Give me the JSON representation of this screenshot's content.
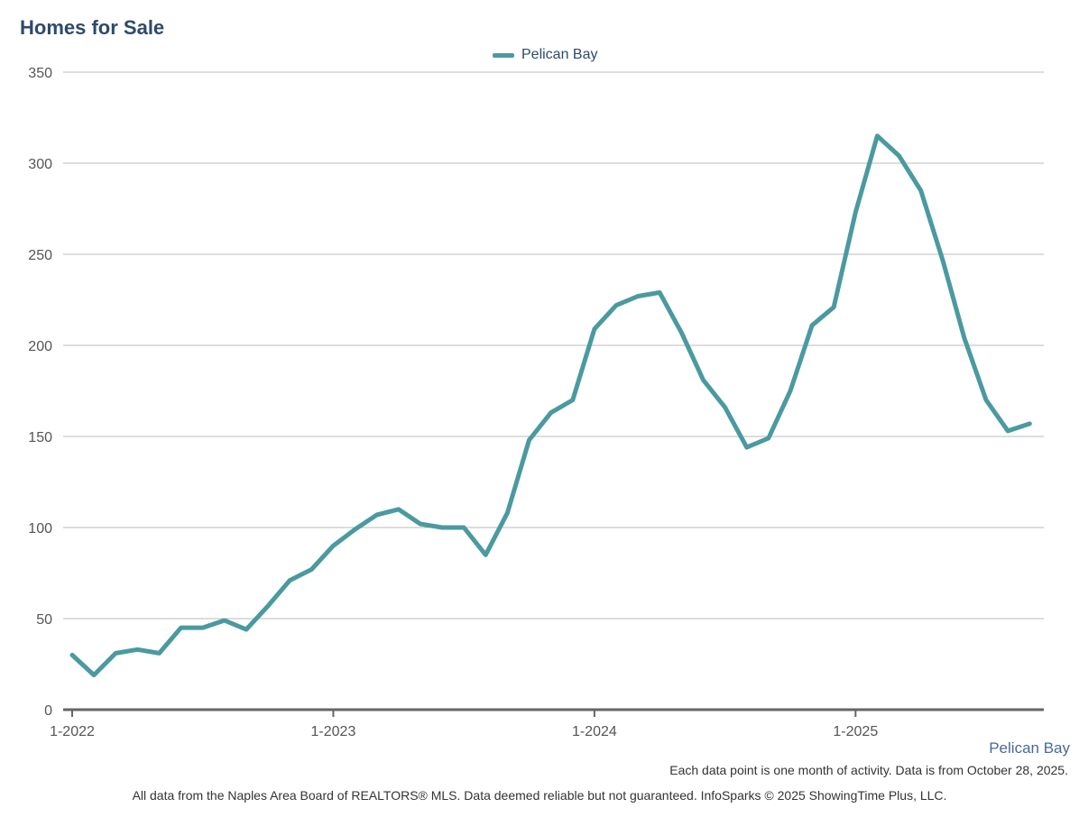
{
  "chart_data": {
    "type": "line",
    "title": "Homes for Sale",
    "x": [
      "1-2022",
      "2-2022",
      "3-2022",
      "4-2022",
      "5-2022",
      "6-2022",
      "7-2022",
      "8-2022",
      "9-2022",
      "10-2022",
      "11-2022",
      "12-2022",
      "1-2023",
      "2-2023",
      "3-2023",
      "4-2023",
      "5-2023",
      "6-2023",
      "7-2023",
      "8-2023",
      "9-2023",
      "10-2023",
      "11-2023",
      "12-2023",
      "1-2024",
      "2-2024",
      "3-2024",
      "4-2024",
      "5-2024",
      "6-2024",
      "7-2024",
      "8-2024",
      "9-2024",
      "10-2024",
      "11-2024",
      "12-2024",
      "1-2025",
      "2-2025",
      "3-2025",
      "4-2025",
      "5-2025",
      "6-2025",
      "7-2025",
      "8-2025",
      "9-2025"
    ],
    "series": [
      {
        "name": "Pelican Bay",
        "color": "#4a9aa0",
        "values": [
          30,
          19,
          31,
          33,
          31,
          45,
          45,
          49,
          44,
          57,
          71,
          77,
          90,
          99,
          107,
          110,
          102,
          100,
          100,
          85,
          108,
          148,
          163,
          170,
          209,
          222,
          227,
          229,
          207,
          181,
          166,
          144,
          149,
          175,
          211,
          221,
          273,
          315,
          304,
          285,
          247,
          204,
          170,
          153,
          157
        ]
      }
    ],
    "x_tick_labels": [
      "1-2022",
      "1-2023",
      "1-2024",
      "1-2025"
    ],
    "y_ticks": [
      0,
      50,
      100,
      150,
      200,
      250,
      300,
      350
    ],
    "ylim": [
      0,
      350
    ],
    "grid": true,
    "legend_position": "top-center"
  },
  "region_label": "Pelican Bay",
  "note": "Each data point is one month of activity. Data is from October 28, 2025.",
  "footer": "All data from the Naples Area Board of REALTORS® MLS. Data deemed reliable but not guaranteed. InfoSparks © 2025 ShowingTime Plus, LLC.",
  "colors": {
    "title": "#2e4a6b",
    "line": "#4a9aa0",
    "grid": "#bbbbbb",
    "axis": "#666666"
  }
}
